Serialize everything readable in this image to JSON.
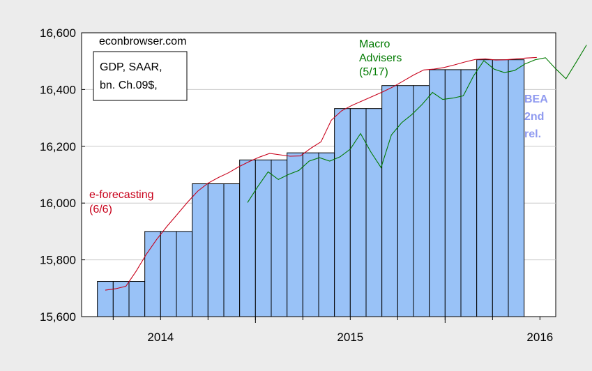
{
  "chart_data": {
    "type": "bar",
    "watermark": "econbrowser.com",
    "legend_box": [
      "GDP, SAAR,",
      "bn. Ch.09$,"
    ],
    "ylim": [
      15600,
      16600
    ],
    "y_ticks": [
      15600,
      15800,
      16000,
      16200,
      16400,
      16600
    ],
    "y_tick_labels": [
      "15,600",
      "15,800",
      "16,000",
      "16,200",
      "16,400",
      "16,600"
    ],
    "x_tick_labels": [
      {
        "label": "2014",
        "month": 18
      },
      {
        "label": "2015",
        "month": 30
      },
      {
        "label": "2016",
        "month": 42
      }
    ],
    "xlim_months": [
      13,
      43
    ],
    "bars": {
      "name": "BEA 2nd rel.",
      "color": "#99c2f7",
      "values": [
        15724,
        15724,
        15724,
        15900,
        15900,
        15900,
        16068,
        16068,
        16068,
        16152,
        16152,
        16152,
        16177,
        16177,
        16177,
        16333,
        16333,
        16333,
        16414,
        16414,
        16414,
        16470,
        16470,
        16470,
        16505,
        16505,
        16505
      ]
    },
    "series": [
      {
        "name": "e-forecasting (6/6)",
        "color": "#c8001a",
        "values": [
          15693,
          15698,
          15707,
          15760,
          15820,
          15872,
          15918,
          15960,
          16003,
          16042,
          16070,
          16090,
          16107,
          16128,
          16146,
          16162,
          16175,
          16170,
          16165,
          16166,
          16193,
          16216,
          16292,
          16325,
          16344,
          16360,
          16376,
          16392,
          16409,
          16430,
          16451,
          16469,
          16472,
          16478,
          16487,
          16497,
          16506,
          16508,
          16504,
          16505,
          16508,
          16511,
          16513
        ]
      },
      {
        "name": "Macro Advisers (5/17)",
        "color": "#007a00",
        "values": [
          16002,
          16058,
          16110,
          16083,
          16101,
          16115,
          16148,
          16160,
          16148,
          16163,
          16190,
          16245,
          16180,
          16125,
          16240,
          16283,
          16312,
          16348,
          16390,
          16365,
          16370,
          16378,
          16448,
          16502,
          16472,
          16460,
          16467,
          16490,
          16505,
          16512,
          16473,
          16438,
          16497,
          16557
        ]
      }
    ],
    "annotations": {
      "ef_line1": "e-forecasting",
      "ef_line2": "(6/6)",
      "ma_line1": "Macro",
      "ma_line2": "Advisers",
      "ma_line3": "(5/17)",
      "bea_line1": "BEA",
      "bea_line2": "2nd",
      "bea_line3": "rel."
    }
  }
}
